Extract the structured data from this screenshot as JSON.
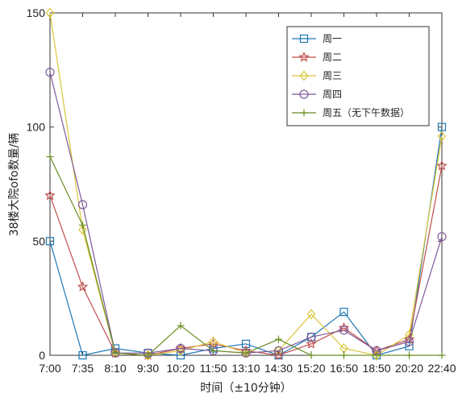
{
  "chart_data": {
    "type": "line",
    "xlabel": "时间（±10分钟）",
    "ylabel": "38楼大院ofo数量/辆",
    "ylim": [
      0,
      150
    ],
    "yticks": [
      0,
      50,
      100,
      150
    ],
    "categories": [
      "7:00",
      "7:35",
      "8:10",
      "9:30",
      "10:20",
      "11:50",
      "13:10",
      "14:30",
      "15:20",
      "16:50",
      "18:50",
      "20:20",
      "22:40"
    ],
    "grid": false,
    "legend_position": "top-right",
    "series": [
      {
        "name": "周一",
        "color": "#1f77b4",
        "marker": "square",
        "values": [
          50,
          0,
          3,
          1,
          0,
          3,
          5,
          0,
          8,
          19,
          0,
          4,
          100
        ]
      },
      {
        "name": "周二",
        "color": "#c0504d",
        "marker": "star",
        "values": [
          70,
          30,
          1,
          0,
          3,
          5,
          2,
          0,
          5,
          12,
          2,
          7,
          83
        ]
      },
      {
        "name": "周三",
        "color": "#d9c63a",
        "marker": "diamond",
        "values": [
          150,
          55,
          1,
          0,
          2,
          6,
          1,
          2,
          18,
          3,
          0,
          9,
          96
        ]
      },
      {
        "name": "周四",
        "color": "#7e5a9b",
        "marker": "circle",
        "values": [
          124,
          66,
          1,
          1,
          3,
          2,
          1,
          2,
          8,
          11,
          2,
          6,
          52
        ]
      },
      {
        "name": "周五（无下午数据）",
        "color": "#6b8e23",
        "marker": "plus",
        "values": [
          87,
          57,
          1,
          0,
          13,
          2,
          1,
          7,
          0,
          0,
          0,
          0,
          0
        ]
      }
    ]
  }
}
